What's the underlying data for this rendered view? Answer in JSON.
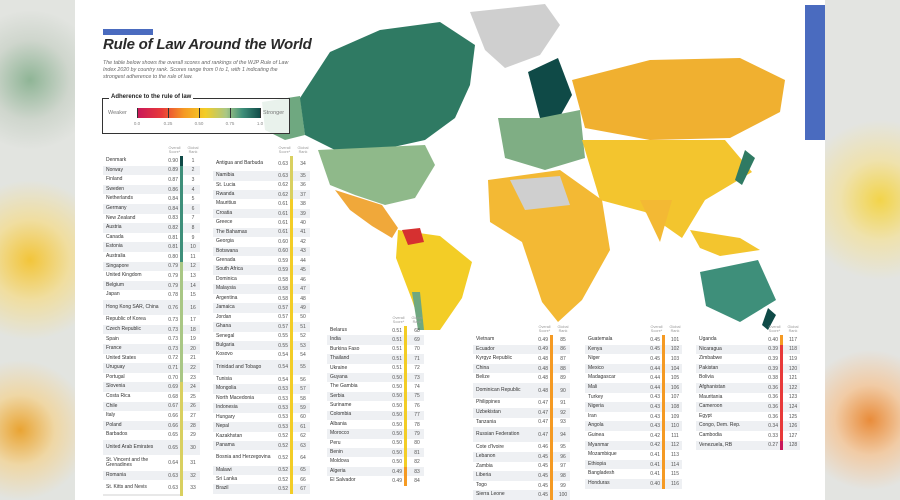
{
  "title": "Rule of Law Around the World",
  "description": "The table below shows the overall scores and rankings of the WJP Rule of Law Index 2020 by country rank. Scores range from 0 to 1, with 1 indicating the strongest adherence to the rule of law.",
  "legend": {
    "title": "Adherence to the rule of law",
    "weaker": "Weaker",
    "stronger": "Stronger",
    "ticks": [
      "0.0",
      "0.25",
      "0.50",
      "0.75",
      "1.0"
    ]
  },
  "headers": {
    "score": "Overall Score*",
    "rank": "Global Rank"
  },
  "colors": {
    "accent": "#4a6bbf",
    "weak": "#c8175a",
    "red": "#e83a3a",
    "orange": "#f59a23",
    "yellow": "#f3cd26",
    "lightgreen": "#a9c785",
    "teal": "#3e8f7a",
    "strong": "#0f4a47"
  },
  "columns": [
    [
      [
        "Denmark",
        "0.90",
        "1"
      ],
      [
        "Norway",
        "0.89",
        "2"
      ],
      [
        "Finland",
        "0.87",
        "3"
      ],
      [
        "Sweden",
        "0.86",
        "4"
      ],
      [
        "Netherlands",
        "0.84",
        "5"
      ],
      [
        "Germany",
        "0.84",
        "6"
      ],
      [
        "New Zealand",
        "0.83",
        "7"
      ],
      [
        "Austria",
        "0.82",
        "8"
      ],
      [
        "Canada",
        "0.81",
        "9"
      ],
      [
        "Estonia",
        "0.81",
        "10"
      ],
      [
        "Australia",
        "0.80",
        "11"
      ],
      [
        "Singapore",
        "0.79",
        "12"
      ],
      [
        "United Kingdom",
        "0.79",
        "13"
      ],
      [
        "Belgium",
        "0.79",
        "14"
      ],
      [
        "Japan",
        "0.78",
        "15"
      ],
      [
        "Hong Kong SAR, China",
        "0.76",
        "16"
      ],
      [
        "Republic of Korea",
        "0.73",
        "17"
      ],
      [
        "Czech Republic",
        "0.73",
        "18"
      ],
      [
        "Spain",
        "0.73",
        "19"
      ],
      [
        "France",
        "0.73",
        "20"
      ],
      [
        "United States",
        "0.72",
        "21"
      ],
      [
        "Uruguay",
        "0.71",
        "22"
      ],
      [
        "Portugal",
        "0.70",
        "23"
      ],
      [
        "Slovenia",
        "0.69",
        "24"
      ],
      [
        "Costa Rica",
        "0.68",
        "25"
      ],
      [
        "Chile",
        "0.67",
        "26"
      ],
      [
        "Italy",
        "0.66",
        "27"
      ],
      [
        "Poland",
        "0.66",
        "28"
      ],
      [
        "Barbados",
        "0.65",
        "29"
      ],
      [
        "United Arab Emirates",
        "0.65",
        "30"
      ],
      [
        "St. Vincent and the Grenadines",
        "0.64",
        "31"
      ],
      [
        "Romania",
        "0.63",
        "32"
      ],
      [
        "St. Kitts and Nevis",
        "0.63",
        "33"
      ]
    ],
    [
      [
        "Antigua and Barbuda",
        "0.63",
        "34"
      ],
      [
        "Namibia",
        "0.63",
        "35"
      ],
      [
        "St. Lucia",
        "0.62",
        "36"
      ],
      [
        "Rwanda",
        "0.62",
        "37"
      ],
      [
        "Mauritius",
        "0.61",
        "38"
      ],
      [
        "Croatia",
        "0.61",
        "39"
      ],
      [
        "Greece",
        "0.61",
        "40"
      ],
      [
        "The Bahamas",
        "0.61",
        "41"
      ],
      [
        "Georgia",
        "0.60",
        "42"
      ],
      [
        "Botswana",
        "0.60",
        "43"
      ],
      [
        "Grenada",
        "0.59",
        "44"
      ],
      [
        "South Africa",
        "0.59",
        "45"
      ],
      [
        "Dominica",
        "0.58",
        "46"
      ],
      [
        "Malaysia",
        "0.58",
        "47"
      ],
      [
        "Argentina",
        "0.58",
        "48"
      ],
      [
        "Jamaica",
        "0.57",
        "49"
      ],
      [
        "Jordan",
        "0.57",
        "50"
      ],
      [
        "Ghana",
        "0.57",
        "51"
      ],
      [
        "Senegal",
        "0.55",
        "52"
      ],
      [
        "Bulgaria",
        "0.55",
        "53"
      ],
      [
        "Kosovo",
        "0.54",
        "54"
      ],
      [
        "Trinidad and Tobago",
        "0.54",
        "55"
      ],
      [
        "Tunisia",
        "0.54",
        "56"
      ],
      [
        "Mongolia",
        "0.53",
        "57"
      ],
      [
        "North Macedonia",
        "0.53",
        "58"
      ],
      [
        "Indonesia",
        "0.53",
        "59"
      ],
      [
        "Hungary",
        "0.53",
        "60"
      ],
      [
        "Nepal",
        "0.53",
        "61"
      ],
      [
        "Kazakhstan",
        "0.52",
        "62"
      ],
      [
        "Panama",
        "0.52",
        "63"
      ],
      [
        "Bosnia and Herzegovina",
        "0.52",
        "64"
      ],
      [
        "Malawi",
        "0.52",
        "65"
      ],
      [
        "Sri Lanka",
        "0.52",
        "66"
      ],
      [
        "Brazil",
        "0.52",
        "67"
      ]
    ],
    [
      [
        "Belarus",
        "0.51",
        "68"
      ],
      [
        "India",
        "0.51",
        "69"
      ],
      [
        "Burkina Faso",
        "0.51",
        "70"
      ],
      [
        "Thailand",
        "0.51",
        "71"
      ],
      [
        "Ukraine",
        "0.51",
        "72"
      ],
      [
        "Guyana",
        "0.50",
        "73"
      ],
      [
        "The Gambia",
        "0.50",
        "74"
      ],
      [
        "Serbia",
        "0.50",
        "75"
      ],
      [
        "Suriname",
        "0.50",
        "76"
      ],
      [
        "Colombia",
        "0.50",
        "77"
      ],
      [
        "Albania",
        "0.50",
        "78"
      ],
      [
        "Morocco",
        "0.50",
        "79"
      ],
      [
        "Peru",
        "0.50",
        "80"
      ],
      [
        "Benin",
        "0.50",
        "81"
      ],
      [
        "Moldova",
        "0.50",
        "82"
      ],
      [
        "Algeria",
        "0.49",
        "83"
      ],
      [
        "El Salvador",
        "0.49",
        "84"
      ]
    ],
    [
      [
        "Vietnam",
        "0.49",
        "85"
      ],
      [
        "Ecuador",
        "0.49",
        "86"
      ],
      [
        "Kyrgyz Republic",
        "0.48",
        "87"
      ],
      [
        "China",
        "0.48",
        "88"
      ],
      [
        "Belize",
        "0.48",
        "89"
      ],
      [
        "Dominican Republic",
        "0.48",
        "90"
      ],
      [
        "Philippines",
        "0.47",
        "91"
      ],
      [
        "Uzbekistan",
        "0.47",
        "92"
      ],
      [
        "Tanzania",
        "0.47",
        "93"
      ],
      [
        "Russian Federation",
        "0.47",
        "94"
      ],
      [
        "Cote d'Ivoire",
        "0.46",
        "95"
      ],
      [
        "Lebanon",
        "0.45",
        "96"
      ],
      [
        "Zambia",
        "0.45",
        "97"
      ],
      [
        "Liberia",
        "0.45",
        "98"
      ],
      [
        "Togo",
        "0.45",
        "99"
      ],
      [
        "Sierra Leone",
        "0.45",
        "100"
      ]
    ],
    [
      [
        "Guatemala",
        "0.45",
        "101"
      ],
      [
        "Kenya",
        "0.45",
        "102"
      ],
      [
        "Niger",
        "0.45",
        "103"
      ],
      [
        "Mexico",
        "0.44",
        "104"
      ],
      [
        "Madagascar",
        "0.44",
        "105"
      ],
      [
        "Mali",
        "0.44",
        "106"
      ],
      [
        "Turkey",
        "0.43",
        "107"
      ],
      [
        "Nigeria",
        "0.43",
        "108"
      ],
      [
        "Iran",
        "0.43",
        "109"
      ],
      [
        "Angola",
        "0.43",
        "110"
      ],
      [
        "Guinea",
        "0.42",
        "111"
      ],
      [
        "Myanmar",
        "0.42",
        "112"
      ],
      [
        "Mozambique",
        "0.41",
        "113"
      ],
      [
        "Ethiopia",
        "0.41",
        "114"
      ],
      [
        "Bangladesh",
        "0.41",
        "115"
      ],
      [
        "Honduras",
        "0.40",
        "116"
      ]
    ],
    [
      [
        "Uganda",
        "0.40",
        "117"
      ],
      [
        "Nicaragua",
        "0.39",
        "118"
      ],
      [
        "Zimbabwe",
        "0.39",
        "119"
      ],
      [
        "Pakistan",
        "0.39",
        "120"
      ],
      [
        "Bolivia",
        "0.38",
        "121"
      ],
      [
        "Afghanistan",
        "0.36",
        "122"
      ],
      [
        "Mauritania",
        "0.36",
        "123"
      ],
      [
        "Cameroon",
        "0.36",
        "124"
      ],
      [
        "Egypt",
        "0.36",
        "125"
      ],
      [
        "Congo, Dem. Rep.",
        "0.34",
        "126"
      ],
      [
        "Cambodia",
        "0.33",
        "127"
      ],
      [
        "Venezuela, RB",
        "0.27",
        "128"
      ]
    ]
  ]
}
